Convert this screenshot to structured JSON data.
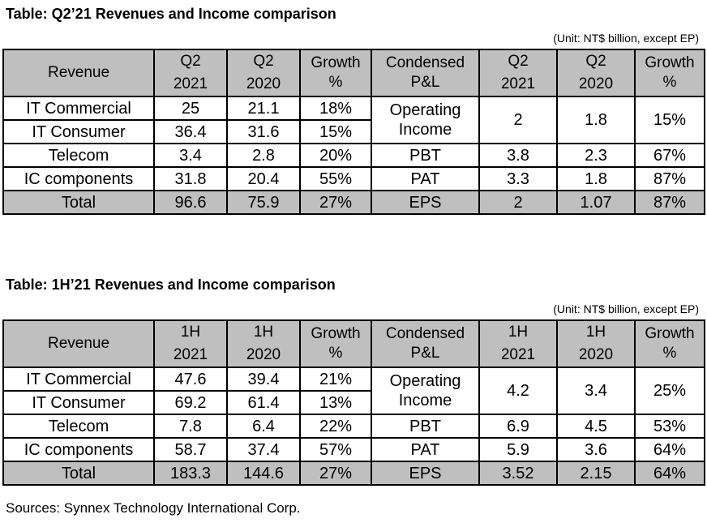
{
  "tables": [
    {
      "title": "Table: Q2’21 Revenues and Income comparison",
      "unit": "(Unit: NT$ billion, except EP)",
      "headers": {
        "revenue": "Revenue",
        "rev_period_a": [
          "Q2",
          "2021"
        ],
        "rev_period_b": [
          "Q2",
          "2020"
        ],
        "rev_growth": [
          "Growth",
          "%"
        ],
        "pl": [
          "Condensed",
          "P&L"
        ],
        "pl_period_a": [
          "Q2",
          "2021"
        ],
        "pl_period_b": [
          "Q2",
          "2020"
        ],
        "pl_growth": [
          "Growth",
          "%"
        ]
      },
      "revenue_rows": [
        {
          "label": "IT Commercial",
          "a": "25",
          "b": "21.1",
          "growth": "18%"
        },
        {
          "label": "IT Consumer",
          "a": "36.4",
          "b": "31.6",
          "growth": "15%"
        },
        {
          "label": "Telecom",
          "a": "3.4",
          "b": "2.8",
          "growth": "20%"
        },
        {
          "label": "IC components",
          "a": "31.8",
          "b": "20.4",
          "growth": "55%"
        }
      ],
      "revenue_total": {
        "label": "Total",
        "a": "96.6",
        "b": "75.9",
        "growth": "27%"
      },
      "pl_rows": [
        {
          "label": [
            "Operating",
            "Income"
          ],
          "a": "2",
          "b": "1.8",
          "growth": "15%"
        },
        {
          "label": "PBT",
          "a": "3.8",
          "b": "2.3",
          "growth": "67%"
        },
        {
          "label": "PAT",
          "a": "3.3",
          "b": "1.8",
          "growth": "87%"
        }
      ],
      "pl_total": {
        "label": "EPS",
        "a": "2",
        "b": "1.07",
        "growth": "87%"
      }
    },
    {
      "title": "Table: 1H’21 Revenues and Income comparison",
      "unit": "(Unit: NT$ billion, except EP)",
      "headers": {
        "revenue": "Revenue",
        "rev_period_a": [
          "1H",
          "2021"
        ],
        "rev_period_b": [
          "1H",
          "2020"
        ],
        "rev_growth": [
          "Growth",
          "%"
        ],
        "pl": [
          "Condensed",
          "P&L"
        ],
        "pl_period_a": [
          "1H",
          "2021"
        ],
        "pl_period_b": [
          "1H",
          "2020"
        ],
        "pl_growth": [
          "Growth",
          "%"
        ]
      },
      "revenue_rows": [
        {
          "label": "IT Commercial",
          "a": "47.6",
          "b": "39.4",
          "growth": "21%"
        },
        {
          "label": "IT Consumer",
          "a": "69.2",
          "b": "61.4",
          "growth": "13%"
        },
        {
          "label": "Telecom",
          "a": "7.8",
          "b": "6.4",
          "growth": "22%"
        },
        {
          "label": "IC components",
          "a": "58.7",
          "b": "37.4",
          "growth": "57%"
        }
      ],
      "revenue_total": {
        "label": "Total",
        "a": "183.3",
        "b": "144.6",
        "growth": "27%"
      },
      "pl_rows": [
        {
          "label": [
            "Operating",
            "Income"
          ],
          "a": "4.2",
          "b": "3.4",
          "growth": "25%"
        },
        {
          "label": "PBT",
          "a": "6.9",
          "b": "4.5",
          "growth": "53%"
        },
        {
          "label": "PAT",
          "a": "5.9",
          "b": "3.6",
          "growth": "64%"
        }
      ],
      "pl_total": {
        "label": "EPS",
        "a": "3.52",
        "b": "2.15",
        "growth": "64%"
      }
    }
  ],
  "sources": "Sources: Synnex Technology International Corp.",
  "colors": {
    "header_fill": "#bfbfbf",
    "border": "#000000"
  }
}
